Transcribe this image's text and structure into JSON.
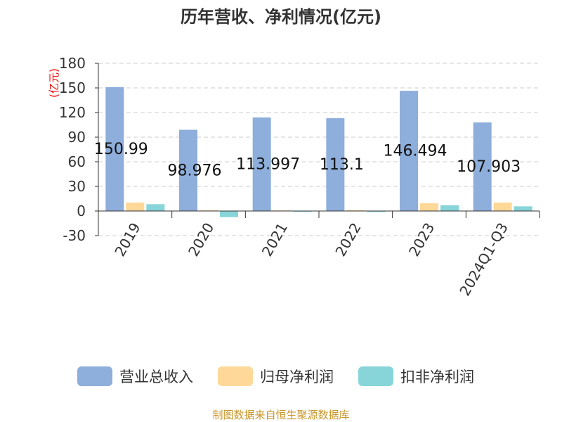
{
  "chart_data": {
    "type": "bar",
    "title": "历年营收、净利情况(亿元)",
    "ylabel": "(亿元)",
    "ylim": [
      -30,
      180
    ],
    "yticks": [
      -30,
      0,
      30,
      60,
      90,
      120,
      150,
      180
    ],
    "grid": true,
    "legend_position": "bottom",
    "categories": [
      "2019",
      "2020",
      "2021",
      "2022",
      "2023",
      "2024Q1-Q3"
    ],
    "series": [
      {
        "name": "营业总收入",
        "color": "#8eaedb",
        "values": [
          150.99,
          98.976,
          113.997,
          113.1,
          146.494,
          107.903
        ],
        "labels": [
          "150.99",
          "98.976",
          "113.997",
          "113.1",
          "146.494",
          "107.903"
        ]
      },
      {
        "name": "归母净利润",
        "color": "#fed898",
        "values": [
          10.3,
          0.8,
          0.7,
          1.0,
          9.4,
          10.3
        ]
      },
      {
        "name": "扣非净利润",
        "color": "#88d5d9",
        "values": [
          8.3,
          -7.5,
          -0.5,
          -1.3,
          7.1,
          5.7
        ]
      }
    ]
  },
  "footer": "制图数据来自恒生聚源数据库"
}
